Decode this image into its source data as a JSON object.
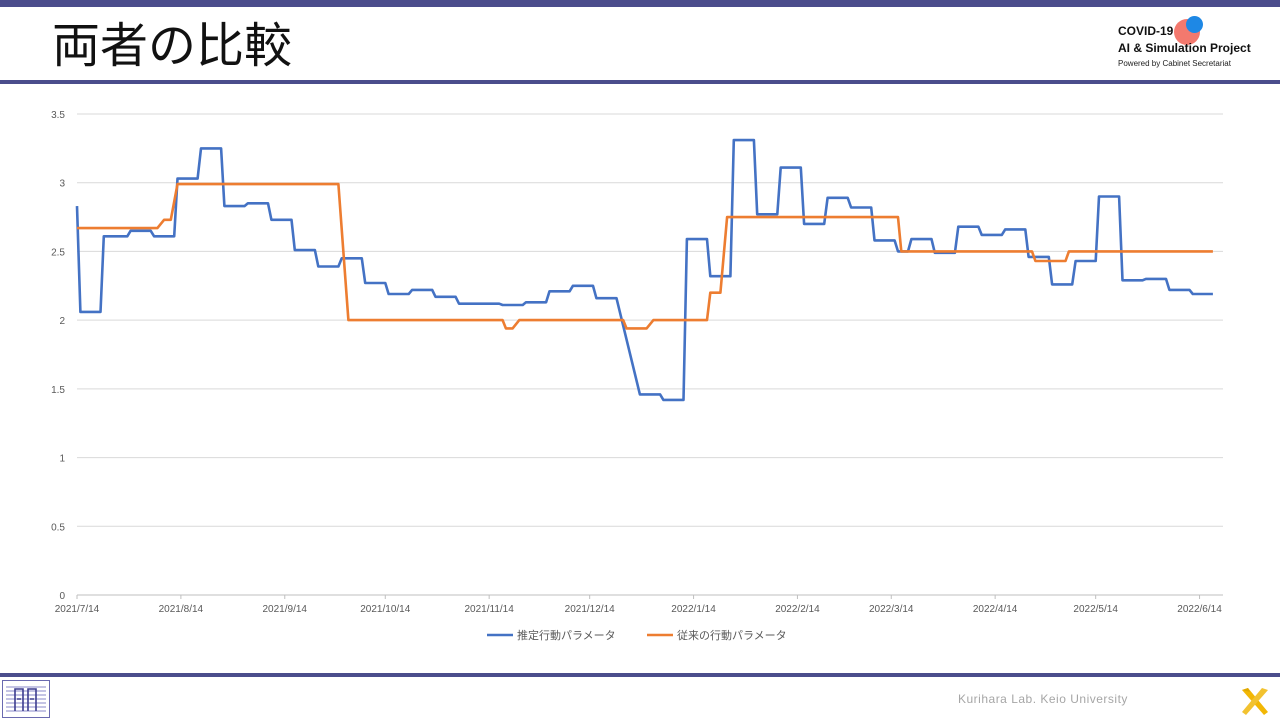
{
  "slide": {
    "title": "両者の比較",
    "logo": {
      "line1": "COVID-19",
      "line2": "AI & Simulation Project",
      "line3": "Powered by Cabinet Secretariat"
    },
    "footer": "Kurihara Lab. Keio University"
  },
  "colors": {
    "accent": "#4b4d8c",
    "series_blue": "#4472c4",
    "series_orange": "#ed7d31",
    "grid": "#d9d9d9"
  },
  "chart_data": {
    "type": "line",
    "title": "",
    "xlabel": "",
    "ylabel": "",
    "ylim": [
      0,
      3.5
    ],
    "yticks": [
      "0",
      "0.5",
      "1",
      "1.5",
      "2",
      "2.5",
      "3",
      "3.5"
    ],
    "xticks": [
      "2021/7/14",
      "2021/8/14",
      "2021/9/14",
      "2021/10/14",
      "2021/11/14",
      "2021/12/14",
      "2022/1/14",
      "2022/2/14",
      "2022/3/14",
      "2022/4/14",
      "2022/5/14",
      "2022/6/14"
    ],
    "grid": true,
    "legend": "bottom",
    "series": [
      {
        "name": "推定行動パラメータ",
        "color": "#4472c4",
        "points": [
          [
            "2021-07-14",
            2.83
          ],
          [
            "2021-07-15",
            2.06
          ],
          [
            "2021-07-21",
            2.06
          ],
          [
            "2021-07-22",
            2.61
          ],
          [
            "2021-07-29",
            2.61
          ],
          [
            "2021-07-30",
            2.65
          ],
          [
            "2021-08-05",
            2.65
          ],
          [
            "2021-08-06",
            2.61
          ],
          [
            "2021-08-12",
            2.61
          ],
          [
            "2021-08-13",
            3.03
          ],
          [
            "2021-08-19",
            3.03
          ],
          [
            "2021-08-20",
            3.25
          ],
          [
            "2021-08-26",
            3.25
          ],
          [
            "2021-08-27",
            2.83
          ],
          [
            "2021-09-02",
            2.83
          ],
          [
            "2021-09-03",
            2.85
          ],
          [
            "2021-09-09",
            2.85
          ],
          [
            "2021-09-10",
            2.73
          ],
          [
            "2021-09-16",
            2.73
          ],
          [
            "2021-09-17",
            2.51
          ],
          [
            "2021-09-23",
            2.51
          ],
          [
            "2021-09-24",
            2.39
          ],
          [
            "2021-09-30",
            2.39
          ],
          [
            "2021-10-01",
            2.45
          ],
          [
            "2021-10-07",
            2.45
          ],
          [
            "2021-10-08",
            2.27
          ],
          [
            "2021-10-14",
            2.27
          ],
          [
            "2021-10-15",
            2.19
          ],
          [
            "2021-10-21",
            2.19
          ],
          [
            "2021-10-22",
            2.22
          ],
          [
            "2021-10-28",
            2.22
          ],
          [
            "2021-10-29",
            2.17
          ],
          [
            "2021-11-04",
            2.17
          ],
          [
            "2021-11-05",
            2.12
          ],
          [
            "2021-11-17",
            2.12
          ],
          [
            "2021-11-18",
            2.11
          ],
          [
            "2021-11-24",
            2.11
          ],
          [
            "2021-11-25",
            2.13
          ],
          [
            "2021-12-01",
            2.13
          ],
          [
            "2021-12-02",
            2.21
          ],
          [
            "2021-12-08",
            2.21
          ],
          [
            "2021-12-09",
            2.25
          ],
          [
            "2021-12-15",
            2.25
          ],
          [
            "2021-12-16",
            2.16
          ],
          [
            "2021-12-22",
            2.16
          ],
          [
            "2021-12-29",
            1.46
          ],
          [
            "2022-01-04",
            1.46
          ],
          [
            "2022-01-05",
            1.42
          ],
          [
            "2022-01-11",
            1.42
          ],
          [
            "2022-01-12",
            2.59
          ],
          [
            "2022-01-18",
            2.59
          ],
          [
            "2022-01-19",
            2.32
          ],
          [
            "2022-01-25",
            2.32
          ],
          [
            "2022-01-26",
            3.31
          ],
          [
            "2022-02-01",
            3.31
          ],
          [
            "2022-02-02",
            2.77
          ],
          [
            "2022-02-08",
            2.77
          ],
          [
            "2022-02-09",
            3.11
          ],
          [
            "2022-02-15",
            3.11
          ],
          [
            "2022-02-16",
            2.7
          ],
          [
            "2022-02-22",
            2.7
          ],
          [
            "2022-02-23",
            2.89
          ],
          [
            "2022-03-01",
            2.89
          ],
          [
            "2022-03-02",
            2.82
          ],
          [
            "2022-03-08",
            2.82
          ],
          [
            "2022-03-09",
            2.58
          ],
          [
            "2022-03-15",
            2.58
          ],
          [
            "2022-03-16",
            2.5
          ],
          [
            "2022-03-19",
            2.5
          ],
          [
            "2022-03-20",
            2.59
          ],
          [
            "2022-03-26",
            2.59
          ],
          [
            "2022-03-27",
            2.49
          ],
          [
            "2022-04-02",
            2.49
          ],
          [
            "2022-04-03",
            2.68
          ],
          [
            "2022-04-09",
            2.68
          ],
          [
            "2022-04-10",
            2.62
          ],
          [
            "2022-04-16",
            2.62
          ],
          [
            "2022-04-17",
            2.66
          ],
          [
            "2022-04-23",
            2.66
          ],
          [
            "2022-04-24",
            2.46
          ],
          [
            "2022-04-30",
            2.46
          ],
          [
            "2022-05-01",
            2.26
          ],
          [
            "2022-05-07",
            2.26
          ],
          [
            "2022-05-08",
            2.43
          ],
          [
            "2022-05-14",
            2.43
          ],
          [
            "2022-05-15",
            2.9
          ],
          [
            "2022-05-21",
            2.9
          ],
          [
            "2022-05-22",
            2.29
          ],
          [
            "2022-05-28",
            2.29
          ],
          [
            "2022-05-29",
            2.3
          ],
          [
            "2022-06-04",
            2.3
          ],
          [
            "2022-06-05",
            2.22
          ],
          [
            "2022-06-11",
            2.22
          ],
          [
            "2022-06-12",
            2.19
          ],
          [
            "2022-06-18",
            2.19
          ]
        ]
      },
      {
        "name": "従来の行動パラメータ",
        "color": "#ed7d31",
        "points": [
          [
            "2021-07-14",
            2.67
          ],
          [
            "2021-08-07",
            2.67
          ],
          [
            "2021-08-09",
            2.73
          ],
          [
            "2021-08-11",
            2.73
          ],
          [
            "2021-08-13",
            2.99
          ],
          [
            "2021-09-30",
            2.99
          ],
          [
            "2021-10-03",
            2.0
          ],
          [
            "2021-11-18",
            2.0
          ],
          [
            "2021-11-19",
            1.94
          ],
          [
            "2021-11-21",
            1.94
          ],
          [
            "2021-11-23",
            2.0
          ],
          [
            "2021-12-24",
            2.0
          ],
          [
            "2021-12-25",
            1.94
          ],
          [
            "2021-12-31",
            1.94
          ],
          [
            "2022-01-02",
            2.0
          ],
          [
            "2022-01-18",
            2.0
          ],
          [
            "2022-01-19",
            2.2
          ],
          [
            "2022-01-22",
            2.2
          ],
          [
            "2022-01-24",
            2.75
          ],
          [
            "2022-03-16",
            2.75
          ],
          [
            "2022-03-17",
            2.5
          ],
          [
            "2022-04-25",
            2.5
          ],
          [
            "2022-04-26",
            2.43
          ],
          [
            "2022-05-05",
            2.43
          ],
          [
            "2022-05-06",
            2.5
          ],
          [
            "2022-06-18",
            2.5
          ]
        ]
      }
    ]
  }
}
